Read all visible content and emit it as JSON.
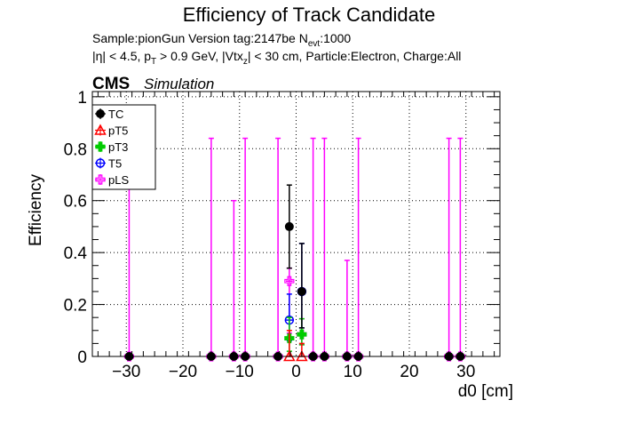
{
  "chart_data": {
    "type": "scatter",
    "title": "Efficiency of Track Candidate",
    "subtitle_line1": "Sample:pionGun   Version tag:2147be  N",
    "subtitle_line1_sub": "evt",
    "subtitle_line1_tail": ":1000",
    "subtitle_line2_parts": [
      "|η| < 4.5, p",
      "T",
      " > 0.9 GeV, |Vtx",
      "z",
      "| < 30 cm, Particle:Electron, Charge:All"
    ],
    "cms_label": "CMS",
    "simulation_label": "Simulation",
    "xlabel": "d0 [cm]",
    "ylabel": "Efficiency",
    "xlim": [
      -36,
      36
    ],
    "ylim": [
      0,
      1.02
    ],
    "xticks": [
      -30,
      -20,
      -10,
      0,
      10,
      20,
      30
    ],
    "xtick_labels": [
      "−30",
      "−20",
      "−10",
      "0",
      "10",
      "20",
      "30"
    ],
    "yticks": [
      0,
      0.2,
      0.4,
      0.6,
      0.8,
      1
    ],
    "ytick_labels": [
      "0",
      "0.2",
      "0.4",
      "0.6",
      "0.8",
      "1"
    ],
    "grid": true,
    "legend_position": "top-left",
    "series": [
      {
        "name": "TC",
        "color": "#000000",
        "marker": "filled-circle",
        "points": [
          {
            "x": -1.2,
            "y": 0.5,
            "xerr": 0.6,
            "yerr_lo": 0.16,
            "yerr_hi": 0.16
          },
          {
            "x": 1.0,
            "y": 0.25,
            "xerr": 0.6,
            "yerr_lo": 0.14,
            "yerr_hi": 0.185
          },
          {
            "x": -29.5,
            "y": 0,
            "xerr": 0.5,
            "yerr_lo": 0,
            "yerr_hi": 0
          },
          {
            "x": -15.0,
            "y": 0,
            "xerr": 0.5,
            "yerr_lo": 0,
            "yerr_hi": 0
          },
          {
            "x": -11.0,
            "y": 0,
            "xerr": 0.5,
            "yerr_lo": 0,
            "yerr_hi": 0
          },
          {
            "x": -9.0,
            "y": 0,
            "xerr": 0.5,
            "yerr_lo": 0,
            "yerr_hi": 0
          },
          {
            "x": -3.2,
            "y": 0,
            "xerr": 0.5,
            "yerr_lo": 0,
            "yerr_hi": 0
          },
          {
            "x": 3.0,
            "y": 0,
            "xerr": 0.5,
            "yerr_lo": 0,
            "yerr_hi": 0
          },
          {
            "x": 5.0,
            "y": 0,
            "xerr": 0.5,
            "yerr_lo": 0,
            "yerr_hi": 0
          },
          {
            "x": 9.0,
            "y": 0,
            "xerr": 0.5,
            "yerr_lo": 0,
            "yerr_hi": 0
          },
          {
            "x": 11.0,
            "y": 0,
            "xerr": 0.5,
            "yerr_lo": 0,
            "yerr_hi": 0
          },
          {
            "x": 27.0,
            "y": 0,
            "xerr": 0.5,
            "yerr_lo": 0,
            "yerr_hi": 0
          },
          {
            "x": 29.0,
            "y": 0,
            "xerr": 0.5,
            "yerr_lo": 0,
            "yerr_hi": 0
          }
        ]
      },
      {
        "name": "pT5",
        "color": "#ff0000",
        "marker": "open-triangle",
        "points": [
          {
            "x": -1.2,
            "y": 0,
            "xerr": 0.6,
            "yerr_lo": 0,
            "yerr_hi": 0.1
          },
          {
            "x": 1.0,
            "y": 0,
            "xerr": 0.6,
            "yerr_lo": 0,
            "yerr_hi": 0.05
          }
        ]
      },
      {
        "name": "pT3",
        "color": "#00cc00",
        "marker": "filled-cross",
        "points": [
          {
            "x": -1.2,
            "y": 0.07,
            "xerr": 0.6,
            "yerr_lo": 0.05,
            "yerr_hi": 0.08
          },
          {
            "x": 1.0,
            "y": 0.085,
            "xerr": 0.6,
            "yerr_lo": 0.04,
            "yerr_hi": 0.06
          }
        ]
      },
      {
        "name": "T5",
        "color": "#0000ff",
        "marker": "open-circle",
        "points": [
          {
            "x": -1.2,
            "y": 0.14,
            "xerr": 0.6,
            "yerr_lo": 0.08,
            "yerr_hi": 0.1
          },
          {
            "x": 1.0,
            "y": 0.25,
            "xerr": 0.6,
            "yerr_lo": 0.14,
            "yerr_hi": 0.185
          }
        ]
      },
      {
        "name": "pLS",
        "color": "#ff00ff",
        "marker": "open-cross",
        "points": [
          {
            "x": -29.5,
            "y": 0,
            "xerr": 0.5,
            "yerr_lo": 0,
            "yerr_hi": 0.84
          },
          {
            "x": -15.0,
            "y": 0,
            "xerr": 0.5,
            "yerr_lo": 0,
            "yerr_hi": 0.84
          },
          {
            "x": -11.0,
            "y": 0,
            "xerr": 0.5,
            "yerr_lo": 0,
            "yerr_hi": 0.6
          },
          {
            "x": -9.0,
            "y": 0,
            "xerr": 0.5,
            "yerr_lo": 0,
            "yerr_hi": 0.84
          },
          {
            "x": -3.2,
            "y": 0,
            "xerr": 0.5,
            "yerr_lo": 0,
            "yerr_hi": 0.84
          },
          {
            "x": -1.2,
            "y": 0.29,
            "xerr": 0.6,
            "yerr_lo": 0.2,
            "yerr_hi": 0.05
          },
          {
            "x": 1.0,
            "y": 0.085,
            "xerr": 0.6,
            "yerr_lo": 0.04,
            "yerr_hi": 0.06
          },
          {
            "x": 3.0,
            "y": 0,
            "xerr": 0.5,
            "yerr_lo": 0,
            "yerr_hi": 0.84
          },
          {
            "x": 5.0,
            "y": 0,
            "xerr": 0.5,
            "yerr_lo": 0,
            "yerr_hi": 0.84
          },
          {
            "x": 9.0,
            "y": 0,
            "xerr": 0.5,
            "yerr_lo": 0,
            "yerr_hi": 0.37
          },
          {
            "x": 11.0,
            "y": 0,
            "xerr": 0.5,
            "yerr_lo": 0,
            "yerr_hi": 0.84
          },
          {
            "x": 27.0,
            "y": 0,
            "xerr": 0.5,
            "yerr_lo": 0,
            "yerr_hi": 0.84
          },
          {
            "x": 29.0,
            "y": 0,
            "xerr": 0.5,
            "yerr_lo": 0,
            "yerr_hi": 0.84
          }
        ]
      }
    ]
  }
}
